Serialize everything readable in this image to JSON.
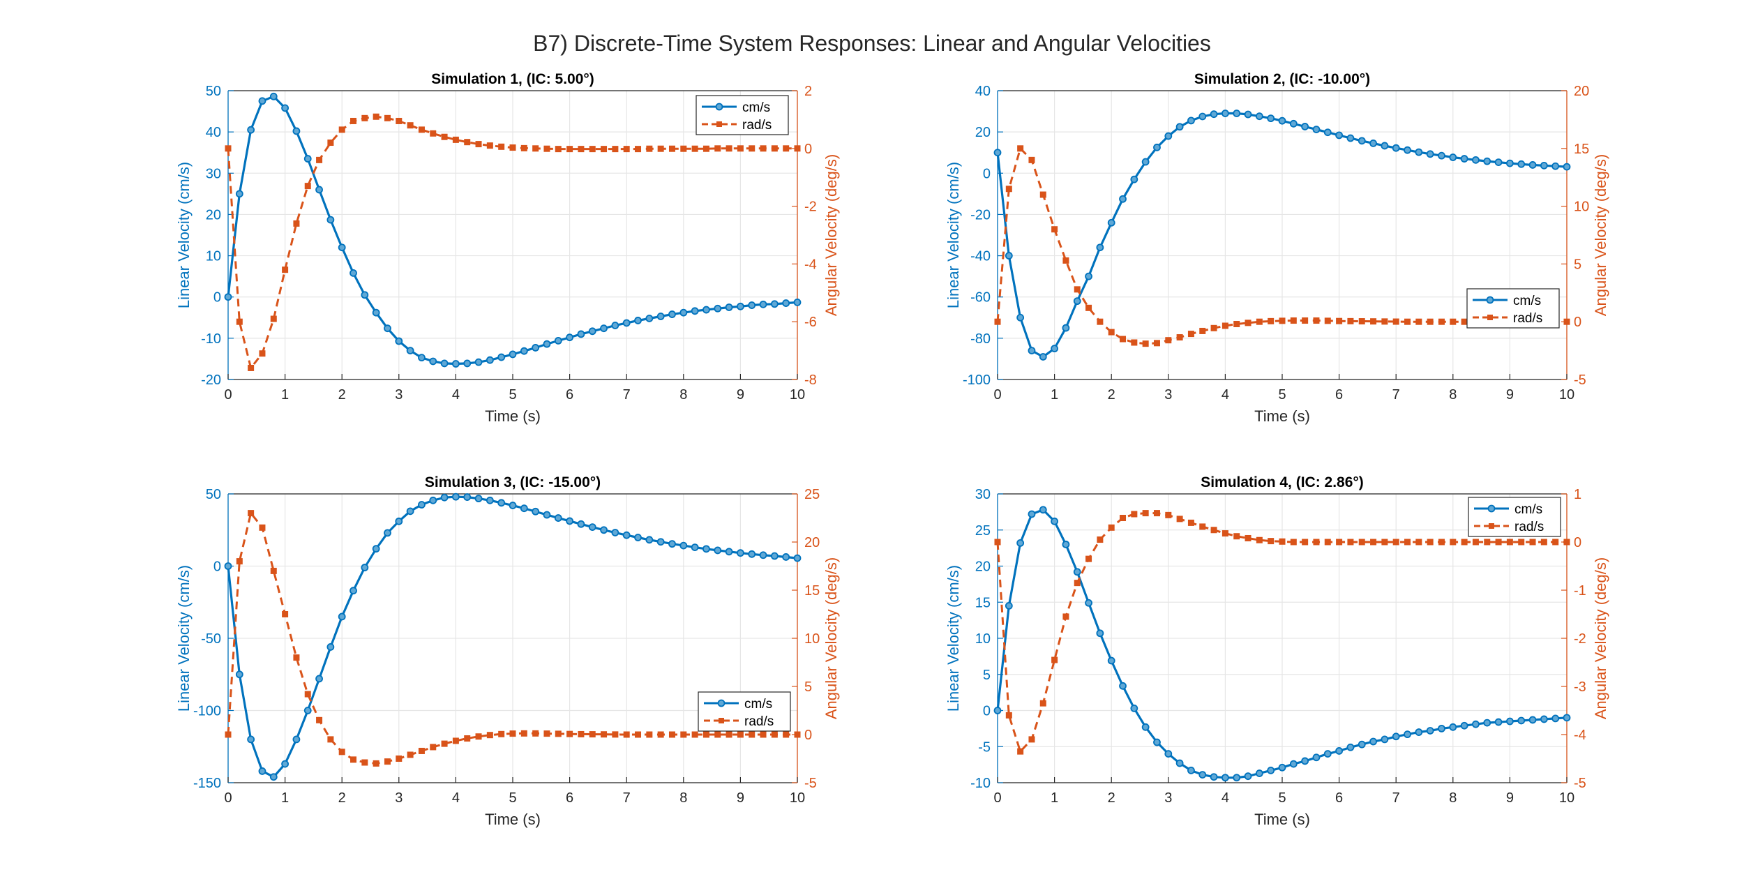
{
  "figure": {
    "suptitle": "B7) Discrete-Time System Responses: Linear and Angular Velocities"
  },
  "colors": {
    "linear": "#0072BD",
    "angular": "#D95319",
    "axis": "#262626",
    "grid": "#E6E6E6"
  },
  "chart_data": [
    {
      "type": "line",
      "title": "Simulation 1, (IC: 5.00°)",
      "xlabel": "Time (s)",
      "ylabel_left": "Linear Velocity (cm/s)",
      "ylabel_right": "Angular Velocity (deg/s)",
      "xlim": [
        0,
        10
      ],
      "xticks": [
        0,
        1,
        2,
        3,
        4,
        5,
        6,
        7,
        8,
        9,
        10
      ],
      "ylim_left": [
        -20,
        50
      ],
      "yticks_left": [
        -20,
        -10,
        0,
        10,
        20,
        30,
        40,
        50
      ],
      "ylim_right": [
        -8,
        2
      ],
      "yticks_right": [
        -8,
        -6,
        -4,
        -2,
        0,
        2
      ],
      "grid": true,
      "legend": {
        "placement": "top-right",
        "entries": [
          "cm/s",
          "rad/s"
        ]
      },
      "series": [
        {
          "name": "cm/s",
          "axis": "left",
          "style": "solid-circle",
          "x": [
            0,
            0.2,
            0.4,
            0.6,
            0.8,
            1,
            1.2,
            1.4,
            1.6,
            1.8,
            2,
            2.2,
            2.4,
            2.6,
            2.8,
            3,
            3.2,
            3.4,
            3.6,
            3.8,
            4,
            4.2,
            4.4,
            4.6,
            4.8,
            5,
            5.2,
            5.4,
            5.6,
            5.8,
            6,
            6.2,
            6.4,
            6.6,
            6.8,
            7,
            7.2,
            7.4,
            7.6,
            7.8,
            8,
            8.2,
            8.4,
            8.6,
            8.8,
            9,
            9.2,
            9.4,
            9.6,
            9.8,
            10
          ],
          "values": [
            0,
            25,
            40.5,
            47.5,
            48.6,
            45.8,
            40.2,
            33.5,
            26,
            18.7,
            12,
            5.8,
            0.5,
            -3.8,
            -7.6,
            -10.7,
            -13,
            -14.7,
            -15.6,
            -16.1,
            -16.2,
            -16.1,
            -15.8,
            -15.3,
            -14.6,
            -13.9,
            -13.1,
            -12.3,
            -11.4,
            -10.6,
            -9.8,
            -9,
            -8.3,
            -7.6,
            -6.9,
            -6.3,
            -5.7,
            -5.2,
            -4.7,
            -4.2,
            -3.8,
            -3.4,
            -3.1,
            -2.8,
            -2.5,
            -2.3,
            -2,
            -1.8,
            -1.7,
            -1.5,
            -1.3
          ]
        },
        {
          "name": "rad/s",
          "axis": "right",
          "style": "dashed-square",
          "x": [
            0,
            0.2,
            0.4,
            0.6,
            0.8,
            1,
            1.2,
            1.4,
            1.6,
            1.8,
            2,
            2.2,
            2.4,
            2.6,
            2.8,
            3,
            3.2,
            3.4,
            3.6,
            3.8,
            4,
            4.2,
            4.4,
            4.6,
            4.8,
            5,
            5.2,
            5.4,
            5.6,
            5.8,
            6,
            6.2,
            6.4,
            6.6,
            6.8,
            7,
            7.2,
            7.4,
            7.6,
            7.8,
            8,
            8.2,
            8.4,
            8.6,
            8.8,
            9,
            9.2,
            9.4,
            9.6,
            9.8,
            10
          ],
          "values": [
            0,
            -6,
            -7.6,
            -7.1,
            -5.9,
            -4.2,
            -2.6,
            -1.3,
            -0.4,
            0.2,
            0.65,
            0.95,
            1.05,
            1.1,
            1.05,
            0.95,
            0.8,
            0.65,
            0.52,
            0.4,
            0.3,
            0.22,
            0.15,
            0.1,
            0.06,
            0.03,
            0.01,
            0,
            -0.01,
            -0.02,
            -0.02,
            -0.02,
            -0.02,
            -0.02,
            -0.02,
            -0.02,
            -0.02,
            -0.01,
            -0.01,
            -0.01,
            -0.01,
            -0.01,
            -0.01,
            0,
            0,
            0,
            0,
            0,
            0,
            0,
            0
          ]
        }
      ]
    },
    {
      "type": "line",
      "title": "Simulation 2, (IC: -10.00°)",
      "xlabel": "Time (s)",
      "ylabel_left": "Linear Velocity (cm/s)",
      "ylabel_right": "Angular Velocity (deg/s)",
      "xlim": [
        0,
        10
      ],
      "xticks": [
        0,
        1,
        2,
        3,
        4,
        5,
        6,
        7,
        8,
        9,
        10
      ],
      "ylim_left": [
        -100,
        40
      ],
      "yticks_left": [
        -100,
        -80,
        -60,
        -40,
        -20,
        0,
        20,
        40
      ],
      "ylim_right": [
        -5,
        20
      ],
      "yticks_right": [
        -5,
        0,
        5,
        10,
        15,
        20
      ],
      "grid": true,
      "legend": {
        "placement": "right-lower",
        "entries": [
          "cm/s",
          "rad/s"
        ]
      },
      "series": [
        {
          "name": "cm/s",
          "axis": "left",
          "style": "solid-circle",
          "x": [
            0,
            0.2,
            0.4,
            0.6,
            0.8,
            1,
            1.2,
            1.4,
            1.6,
            1.8,
            2,
            2.2,
            2.4,
            2.6,
            2.8,
            3,
            3.2,
            3.4,
            3.6,
            3.8,
            4,
            4.2,
            4.4,
            4.6,
            4.8,
            5,
            5.2,
            5.4,
            5.6,
            5.8,
            6,
            6.2,
            6.4,
            6.6,
            6.8,
            7,
            7.2,
            7.4,
            7.6,
            7.8,
            8,
            8.2,
            8.4,
            8.6,
            8.8,
            9,
            9.2,
            9.4,
            9.6,
            9.8,
            10
          ],
          "values": [
            10,
            -40,
            -70,
            -86,
            -89,
            -85,
            -75,
            -62,
            -50,
            -36,
            -24,
            -12.5,
            -3,
            5.5,
            12.5,
            18,
            22.5,
            25.5,
            27.5,
            28.6,
            29,
            29,
            28.5,
            27.6,
            26.6,
            25.4,
            24,
            22.6,
            21.2,
            19.8,
            18.4,
            17,
            15.7,
            14.5,
            13.3,
            12.2,
            11.2,
            10.2,
            9.3,
            8.5,
            7.7,
            7,
            6.4,
            5.8,
            5.3,
            4.8,
            4.4,
            4,
            3.7,
            3.4,
            3.1
          ]
        },
        {
          "name": "rad/s",
          "axis": "right",
          "style": "dashed-square",
          "x": [
            0,
            0.2,
            0.4,
            0.6,
            0.8,
            1,
            1.2,
            1.4,
            1.6,
            1.8,
            2,
            2.2,
            2.4,
            2.6,
            2.8,
            3,
            3.2,
            3.4,
            3.6,
            3.8,
            4,
            4.2,
            4.4,
            4.6,
            4.8,
            5,
            5.2,
            5.4,
            5.6,
            5.8,
            6,
            6.2,
            6.4,
            6.6,
            6.8,
            7,
            7.2,
            7.4,
            7.6,
            7.8,
            8,
            8.2,
            8.4,
            8.6,
            8.8,
            9,
            9.2,
            9.4,
            9.6,
            9.8,
            10
          ],
          "values": [
            0,
            11.5,
            15,
            14,
            11,
            8,
            5.3,
            2.8,
            1.2,
            0,
            -0.9,
            -1.5,
            -1.8,
            -1.9,
            -1.85,
            -1.6,
            -1.35,
            -1.05,
            -0.8,
            -0.55,
            -0.35,
            -0.2,
            -0.1,
            0,
            0.05,
            0.08,
            0.1,
            0.1,
            0.1,
            0.08,
            0.06,
            0.05,
            0.04,
            0.03,
            0.02,
            0.01,
            0,
            0,
            0,
            0,
            0,
            0,
            0,
            0,
            0,
            0,
            0,
            0,
            0,
            0,
            0
          ]
        }
      ]
    },
    {
      "type": "line",
      "title": "Simulation 3, (IC: -15.00°)",
      "xlabel": "Time (s)",
      "ylabel_left": "Linear Velocity (cm/s)",
      "ylabel_right": "Angular Velocity (deg/s)",
      "xlim": [
        0,
        10
      ],
      "xticks": [
        0,
        1,
        2,
        3,
        4,
        5,
        6,
        7,
        8,
        9,
        10
      ],
      "ylim_left": [
        -150,
        50
      ],
      "yticks_left": [
        -150,
        -100,
        -50,
        0,
        50
      ],
      "ylim_right": [
        -5,
        25
      ],
      "yticks_right": [
        -5,
        0,
        5,
        10,
        15,
        20,
        25
      ],
      "grid": true,
      "legend": {
        "placement": "bottom-right",
        "entries": [
          "cm/s",
          "rad/s"
        ]
      },
      "series": [
        {
          "name": "cm/s",
          "axis": "left",
          "style": "solid-circle",
          "x": [
            0,
            0.2,
            0.4,
            0.6,
            0.8,
            1,
            1.2,
            1.4,
            1.6,
            1.8,
            2,
            2.2,
            2.4,
            2.6,
            2.8,
            3,
            3.2,
            3.4,
            3.6,
            3.8,
            4,
            4.2,
            4.4,
            4.6,
            4.8,
            5,
            5.2,
            5.4,
            5.6,
            5.8,
            6,
            6.2,
            6.4,
            6.6,
            6.8,
            7,
            7.2,
            7.4,
            7.6,
            7.8,
            8,
            8.2,
            8.4,
            8.6,
            8.8,
            9,
            9.2,
            9.4,
            9.6,
            9.8,
            10
          ],
          "values": [
            0,
            -75,
            -120,
            -142,
            -146,
            -137,
            -120,
            -100,
            -78,
            -56,
            -35,
            -17,
            -1,
            12,
            23,
            31,
            38,
            42.5,
            45.5,
            47.5,
            48,
            47.8,
            46.8,
            45.5,
            43.8,
            42,
            40,
            37.8,
            35.5,
            33.3,
            31.2,
            29.1,
            27,
            25,
            23.2,
            21.4,
            19.8,
            18.2,
            16.8,
            15.4,
            14.2,
            13,
            11.9,
            10.9,
            10,
            9.1,
            8.3,
            7.6,
            7,
            6.3,
            5.5
          ]
        },
        {
          "name": "rad/s",
          "axis": "right",
          "style": "dashed-square",
          "x": [
            0,
            0.2,
            0.4,
            0.6,
            0.8,
            1,
            1.2,
            1.4,
            1.6,
            1.8,
            2,
            2.2,
            2.4,
            2.6,
            2.8,
            3,
            3.2,
            3.4,
            3.6,
            3.8,
            4,
            4.2,
            4.4,
            4.6,
            4.8,
            5,
            5.2,
            5.4,
            5.6,
            5.8,
            6,
            6.2,
            6.4,
            6.6,
            6.8,
            7,
            7.2,
            7.4,
            7.6,
            7.8,
            8,
            8.2,
            8.4,
            8.6,
            8.8,
            9,
            9.2,
            9.4,
            9.6,
            9.8,
            10
          ],
          "values": [
            0,
            18,
            23,
            21.5,
            17,
            12.5,
            8,
            4.2,
            1.5,
            -0.5,
            -1.8,
            -2.6,
            -2.9,
            -3,
            -2.8,
            -2.5,
            -2.1,
            -1.7,
            -1.3,
            -0.95,
            -0.65,
            -0.4,
            -0.2,
            -0.05,
            0.05,
            0.1,
            0.12,
            0.12,
            0.1,
            0.08,
            0.06,
            0.04,
            0.03,
            0.02,
            0.01,
            0,
            0,
            0,
            0,
            0,
            0,
            0,
            0,
            0,
            0,
            0,
            0,
            0,
            0,
            0,
            0
          ]
        }
      ]
    },
    {
      "type": "line",
      "title": "Simulation 4, (IC: 2.86°)",
      "xlabel": "Time (s)",
      "ylabel_left": "Linear Velocity (cm/s)",
      "ylabel_right": "Angular Velocity (deg/s)",
      "xlim": [
        0,
        10
      ],
      "xticks": [
        0,
        1,
        2,
        3,
        4,
        5,
        6,
        7,
        8,
        9,
        10
      ],
      "ylim_left": [
        -10,
        30
      ],
      "yticks_left": [
        -10,
        -5,
        0,
        5,
        10,
        15,
        20,
        25,
        30
      ],
      "ylim_right": [
        -5,
        1
      ],
      "yticks_right": [
        -5,
        -4,
        -3,
        -2,
        -1,
        0,
        1
      ],
      "grid": true,
      "legend": {
        "placement": "top-right",
        "entries": [
          "cm/s",
          "rad/s"
        ]
      },
      "series": [
        {
          "name": "cm/s",
          "axis": "left",
          "style": "solid-circle",
          "x": [
            0,
            0.2,
            0.4,
            0.6,
            0.8,
            1,
            1.2,
            1.4,
            1.6,
            1.8,
            2,
            2.2,
            2.4,
            2.6,
            2.8,
            3,
            3.2,
            3.4,
            3.6,
            3.8,
            4,
            4.2,
            4.4,
            4.6,
            4.8,
            5,
            5.2,
            5.4,
            5.6,
            5.8,
            6,
            6.2,
            6.4,
            6.6,
            6.8,
            7,
            7.2,
            7.4,
            7.6,
            7.8,
            8,
            8.2,
            8.4,
            8.6,
            8.8,
            9,
            9.2,
            9.4,
            9.6,
            9.8,
            10
          ],
          "values": [
            0,
            14.5,
            23.2,
            27.2,
            27.8,
            26.2,
            23,
            19.2,
            14.9,
            10.7,
            6.9,
            3.4,
            0.3,
            -2.3,
            -4.4,
            -6,
            -7.3,
            -8.3,
            -8.9,
            -9.2,
            -9.3,
            -9.3,
            -9.1,
            -8.7,
            -8.3,
            -7.9,
            -7.4,
            -7,
            -6.5,
            -6,
            -5.6,
            -5.1,
            -4.7,
            -4.3,
            -4,
            -3.6,
            -3.3,
            -3,
            -2.8,
            -2.5,
            -2.3,
            -2.1,
            -1.9,
            -1.7,
            -1.6,
            -1.5,
            -1.4,
            -1.3,
            -1.2,
            -1.1,
            -1
          ]
        },
        {
          "name": "rad/s",
          "axis": "right",
          "style": "dashed-square",
          "x": [
            0,
            0.2,
            0.4,
            0.6,
            0.8,
            1,
            1.2,
            1.4,
            1.6,
            1.8,
            2,
            2.2,
            2.4,
            2.6,
            2.8,
            3,
            3.2,
            3.4,
            3.6,
            3.8,
            4,
            4.2,
            4.4,
            4.6,
            4.8,
            5,
            5.2,
            5.4,
            5.6,
            5.8,
            6,
            6.2,
            6.4,
            6.6,
            6.8,
            7,
            7.2,
            7.4,
            7.6,
            7.8,
            8,
            8.2,
            8.4,
            8.6,
            8.8,
            9,
            9.2,
            9.4,
            9.6,
            9.8,
            10
          ],
          "values": [
            0,
            -3.6,
            -4.35,
            -4.1,
            -3.35,
            -2.45,
            -1.55,
            -0.85,
            -0.35,
            0.05,
            0.3,
            0.5,
            0.58,
            0.6,
            0.6,
            0.56,
            0.48,
            0.4,
            0.32,
            0.25,
            0.18,
            0.12,
            0.08,
            0.04,
            0.02,
            0.01,
            0,
            0,
            0,
            0,
            0,
            0,
            0,
            0,
            0,
            0,
            0,
            0,
            0,
            0,
            0,
            0,
            0,
            0,
            0,
            0,
            0,
            0,
            0,
            0,
            0
          ]
        }
      ]
    }
  ]
}
